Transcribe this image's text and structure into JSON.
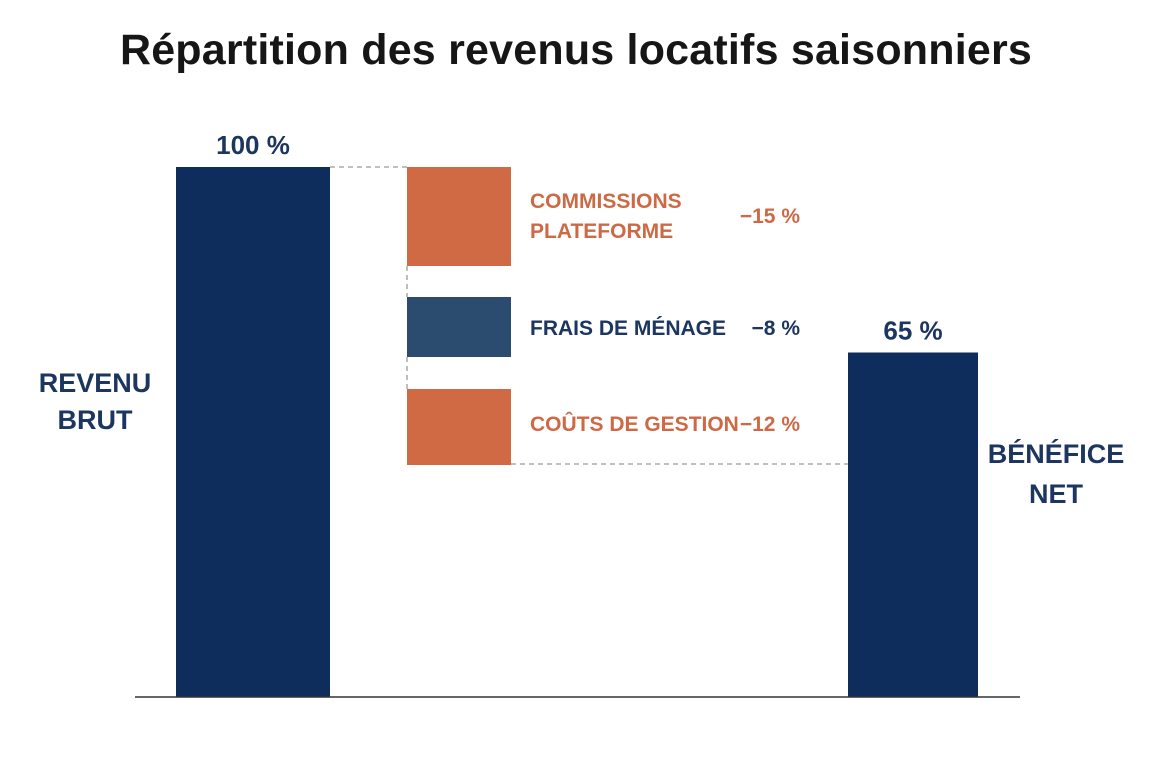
{
  "chart_data": {
    "type": "waterfall",
    "title": "Répartition des revenus locatifs saisonniers",
    "xlabel": "",
    "ylabel": "",
    "unit": "%",
    "ylim": [
      0,
      100
    ],
    "grid": false,
    "totals": [
      {
        "id": "gross",
        "label_lines": [
          "REVENU",
          "BRUT"
        ],
        "value": 100,
        "value_label": "100 %"
      },
      {
        "id": "net",
        "label_lines": [
          "BÉNÉFICE",
          "NET"
        ],
        "value": 65,
        "value_label": "65 %"
      }
    ],
    "deductions": [
      {
        "id": "platform",
        "label_lines": [
          "COMMISSIONS",
          "PLATEFORME"
        ],
        "value": -15,
        "value_label": "−15 %"
      },
      {
        "id": "cleaning",
        "label_lines": [
          "FRAIS DE MÉNAGE"
        ],
        "value": -8,
        "value_label": "−8 %"
      },
      {
        "id": "management",
        "label_lines": [
          "COÛTS DE GESTION"
        ],
        "value": -12,
        "value_label": "−12 %"
      }
    ],
    "colors": {
      "total": "#0f2d5c",
      "deduction_orange": "#d06a45",
      "deduction_blue": "#2b4b6f",
      "label_navy": "#1c3660",
      "label_orange": "#cd6a45",
      "title": "#161616",
      "axis": "#333333",
      "connector": "#9a9a9a"
    },
    "deduction_color_keys": [
      "deduction_orange",
      "deduction_blue",
      "deduction_orange"
    ]
  }
}
